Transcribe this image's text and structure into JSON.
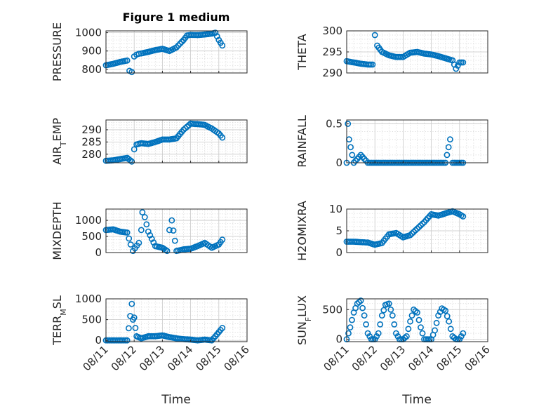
{
  "figure_title": "Figure 1 medium",
  "x_axis_label": "Time",
  "x_tick_labels": [
    "08/11",
    "08/12",
    "08/13",
    "08/14",
    "08/15",
    "08/16"
  ],
  "chart_data": [
    {
      "type": "scatter",
      "name": "pressure",
      "ylabel": "PRESSURE",
      "title": "Figure 1 medium",
      "xlim": [
        "2023-08-11",
        "2023-08-16"
      ],
      "ylim": [
        780,
        1010
      ],
      "yticks": [
        800,
        900,
        1000
      ],
      "grid": true,
      "minor_grid": true,
      "color": "#0072BD",
      "x": [
        "08/11 00:00",
        "08/11 06:00",
        "08/11 12:00",
        "08/11 18:00",
        "08/11 20:00",
        "08/11 22:00",
        "08/12 00:00",
        "08/12 02:00",
        "08/12 04:00",
        "08/12 06:00",
        "08/12 12:00",
        "08/12 18:00",
        "08/13 00:00",
        "08/13 06:00",
        "08/13 12:00",
        "08/13 18:00",
        "08/13 21:00",
        "08/14 00:00",
        "08/14 06:00",
        "08/14 12:00",
        "08/14 18:00",
        "08/14 21:00",
        "08/15 00:00",
        "08/15 03:00"
      ],
      "y": [
        822,
        830,
        840,
        848,
        792,
        785,
        870,
        880,
        885,
        887,
        895,
        905,
        912,
        900,
        920,
        960,
        985,
        988,
        987,
        990,
        995,
        1000,
        960,
        930
      ]
    },
    {
      "type": "scatter",
      "name": "theta",
      "ylabel": "THETA",
      "xlim": [
        "2023-08-11",
        "2023-08-16"
      ],
      "ylim": [
        290,
        300
      ],
      "yticks": [
        290,
        295,
        300
      ],
      "grid": true,
      "minor_grid": true,
      "color": "#0072BD",
      "x": [
        "08/11 00:00",
        "08/11 06:00",
        "08/11 12:00",
        "08/11 18:00",
        "08/11 22:00",
        "08/12 00:00",
        "08/12 02:00",
        "08/12 06:00",
        "08/12 12:00",
        "08/12 18:00",
        "08/13 00:00",
        "08/13 06:00",
        "08/13 12:00",
        "08/13 18:00",
        "08/14 00:00",
        "08/14 06:00",
        "08/14 12:00",
        "08/14 18:00",
        "08/14 21:00",
        "08/15 00:00",
        "08/15 03:00"
      ],
      "y": [
        292.8,
        292.5,
        292.2,
        292.0,
        292.0,
        299.0,
        296.5,
        295.0,
        294.2,
        293.8,
        293.8,
        294.8,
        295.0,
        294.6,
        294.4,
        294.0,
        293.5,
        293.0,
        291.0,
        292.5,
        292.5
      ]
    },
    {
      "type": "scatter",
      "name": "air_temp",
      "ylabel": "AIR_TEMP",
      "xlim": [
        "2023-08-11",
        "2023-08-16"
      ],
      "ylim": [
        276.5,
        294
      ],
      "yticks": [
        280,
        285,
        290
      ],
      "grid": true,
      "minor_grid": true,
      "color": "#0072BD",
      "x": [
        "08/11 00:00",
        "08/11 06:00",
        "08/11 12:00",
        "08/11 18:00",
        "08/11 22:00",
        "08/12 00:00",
        "08/12 02:00",
        "08/12 06:00",
        "08/12 12:00",
        "08/12 18:00",
        "08/13 00:00",
        "08/13 06:00",
        "08/13 12:00",
        "08/13 18:00",
        "08/14 00:00",
        "08/14 06:00",
        "08/14 12:00",
        "08/14 18:00",
        "08/15 00:00",
        "08/15 03:00"
      ],
      "y": [
        277.3,
        277.5,
        278.0,
        278.5,
        277.0,
        282.0,
        284.0,
        284.5,
        284.2,
        285.0,
        286.0,
        286.0,
        286.5,
        290.0,
        292.5,
        292.3,
        292.0,
        290.5,
        288.5,
        286.8
      ]
    },
    {
      "type": "scatter",
      "name": "rainfall",
      "ylabel": "RAINFALL",
      "xlim": [
        "2023-08-11",
        "2023-08-16"
      ],
      "ylim": [
        0,
        0.55
      ],
      "yticks": [
        0,
        0.5
      ],
      "grid": true,
      "minor_grid": true,
      "color": "#0072BD",
      "x": [
        "08/11 00:00",
        "08/11 01:00",
        "08/11 02:00",
        "08/11 06:00",
        "08/11 12:00",
        "08/11 18:00",
        "08/12 00:00",
        "08/12 06:00",
        "08/12 12:00",
        "08/12 18:00",
        "08/13 00:00",
        "08/13 06:00",
        "08/13 12:00",
        "08/13 18:00",
        "08/14 00:00",
        "08/14 06:00",
        "08/14 12:00",
        "08/14 16:00",
        "08/14 18:00",
        "08/15 00:00",
        "08/15 03:00"
      ],
      "y": [
        0,
        0.5,
        0.3,
        0,
        0.1,
        0,
        0,
        0,
        0,
        0,
        0,
        0,
        0,
        0,
        0,
        0,
        0,
        0.3,
        0,
        0,
        0
      ]
    },
    {
      "type": "scatter",
      "name": "mixdepth",
      "ylabel": "MIXDEPTH",
      "xlim": [
        "2023-08-11",
        "2023-08-16"
      ],
      "ylim": [
        0,
        1350
      ],
      "yticks": [
        0,
        500,
        1000
      ],
      "grid": true,
      "minor_grid": true,
      "color": "#0072BD",
      "x": [
        "08/11 00:00",
        "08/11 06:00",
        "08/11 12:00",
        "08/11 18:00",
        "08/11 21:00",
        "08/11 23:00",
        "08/12 04:00",
        "08/12 06:00",
        "08/12 07:00",
        "08/12 09:00",
        "08/12 12:00",
        "08/12 18:00",
        "08/13 00:00",
        "08/13 04:00",
        "08/13 06:00",
        "08/13 08:00",
        "08/13 12:00",
        "08/13 18:00",
        "08/14 00:00",
        "08/14 06:00",
        "08/14 12:00",
        "08/14 18:00",
        "08/15 00:00",
        "08/15 03:00"
      ],
      "y": [
        700,
        720,
        650,
        620,
        250,
        50,
        300,
        700,
        1250,
        1100,
        650,
        200,
        150,
        50,
        700,
        1000,
        50,
        100,
        120,
        200,
        300,
        150,
        250,
        400
      ]
    },
    {
      "type": "scatter",
      "name": "h2omixra",
      "ylabel": "H2OMIXRA",
      "xlim": [
        "2023-08-11",
        "2023-08-16"
      ],
      "ylim": [
        0,
        10
      ],
      "yticks": [
        0,
        5,
        10
      ],
      "grid": true,
      "minor_grid": true,
      "color": "#0072BD",
      "x": [
        "08/11 00:00",
        "08/11 06:00",
        "08/11 12:00",
        "08/11 18:00",
        "08/12 00:00",
        "08/12 06:00",
        "08/12 12:00",
        "08/12 18:00",
        "08/13 00:00",
        "08/13 06:00",
        "08/13 12:00",
        "08/13 18:00",
        "08/14 00:00",
        "08/14 06:00",
        "08/14 12:00",
        "08/14 18:00",
        "08/15 00:00",
        "08/15 03:00"
      ],
      "y": [
        2.5,
        2.5,
        2.4,
        2.3,
        1.8,
        2.2,
        4.2,
        4.5,
        3.5,
        4.0,
        5.5,
        7.0,
        8.8,
        8.5,
        9.0,
        9.5,
        8.8,
        8.3
      ]
    },
    {
      "type": "scatter",
      "name": "terr_msl",
      "ylabel": "TERR_MSL",
      "xlim": [
        "2023-08-11",
        "2023-08-16"
      ],
      "ylim": [
        -30,
        1000
      ],
      "yticks": [
        0,
        500,
        1000
      ],
      "grid": true,
      "minor_grid": true,
      "color": "#0072BD",
      "x": [
        "08/11 00:00",
        "08/11 06:00",
        "08/11 12:00",
        "08/11 18:00",
        "08/11 22:00",
        "08/11 23:00",
        "08/12 00:00",
        "08/12 01:00",
        "08/12 02:00",
        "08/12 06:00",
        "08/12 12:00",
        "08/12 18:00",
        "08/13 00:00",
        "08/13 06:00",
        "08/13 12:00",
        "08/13 18:00",
        "08/14 00:00",
        "08/14 06:00",
        "08/14 12:00",
        "08/14 18:00",
        "08/15 00:00",
        "08/15 03:00"
      ],
      "y": [
        0,
        0,
        0,
        0,
        880,
        500,
        550,
        300,
        100,
        50,
        100,
        100,
        120,
        80,
        50,
        30,
        20,
        0,
        20,
        0,
        200,
        300
      ]
    },
    {
      "type": "scatter",
      "name": "sun_flux",
      "ylabel": "SUN_FLUX",
      "xlim": [
        "2023-08-11",
        "2023-08-16"
      ],
      "ylim": [
        -40,
        680
      ],
      "yticks": [
        0,
        500
      ],
      "grid": true,
      "minor_grid": true,
      "color": "#0072BD",
      "x": [
        "08/11 00:00",
        "08/11 03:00",
        "08/11 06:00",
        "08/11 09:00",
        "08/11 12:00",
        "08/11 15:00",
        "08/11 18:00",
        "08/11 21:00",
        "08/12 00:00",
        "08/12 03:00",
        "08/12 06:00",
        "08/12 09:00",
        "08/12 12:00",
        "08/12 15:00",
        "08/12 18:00",
        "08/12 21:00",
        "08/13 00:00",
        "08/13 03:00",
        "08/13 06:00",
        "08/13 09:00",
        "08/13 12:00",
        "08/13 15:00",
        "08/13 18:00",
        "08/13 21:00",
        "08/14 00:00",
        "08/14 03:00",
        "08/14 06:00",
        "08/14 09:00",
        "08/14 12:00",
        "08/14 15:00",
        "08/14 18:00",
        "08/14 21:00",
        "08/15 00:00",
        "08/15 03:00"
      ],
      "y": [
        0,
        200,
        450,
        600,
        650,
        400,
        100,
        0,
        0,
        100,
        400,
        580,
        600,
        400,
        100,
        0,
        0,
        50,
        300,
        500,
        450,
        200,
        0,
        0,
        0,
        150,
        400,
        520,
        480,
        300,
        50,
        0,
        0,
        100
      ]
    }
  ]
}
